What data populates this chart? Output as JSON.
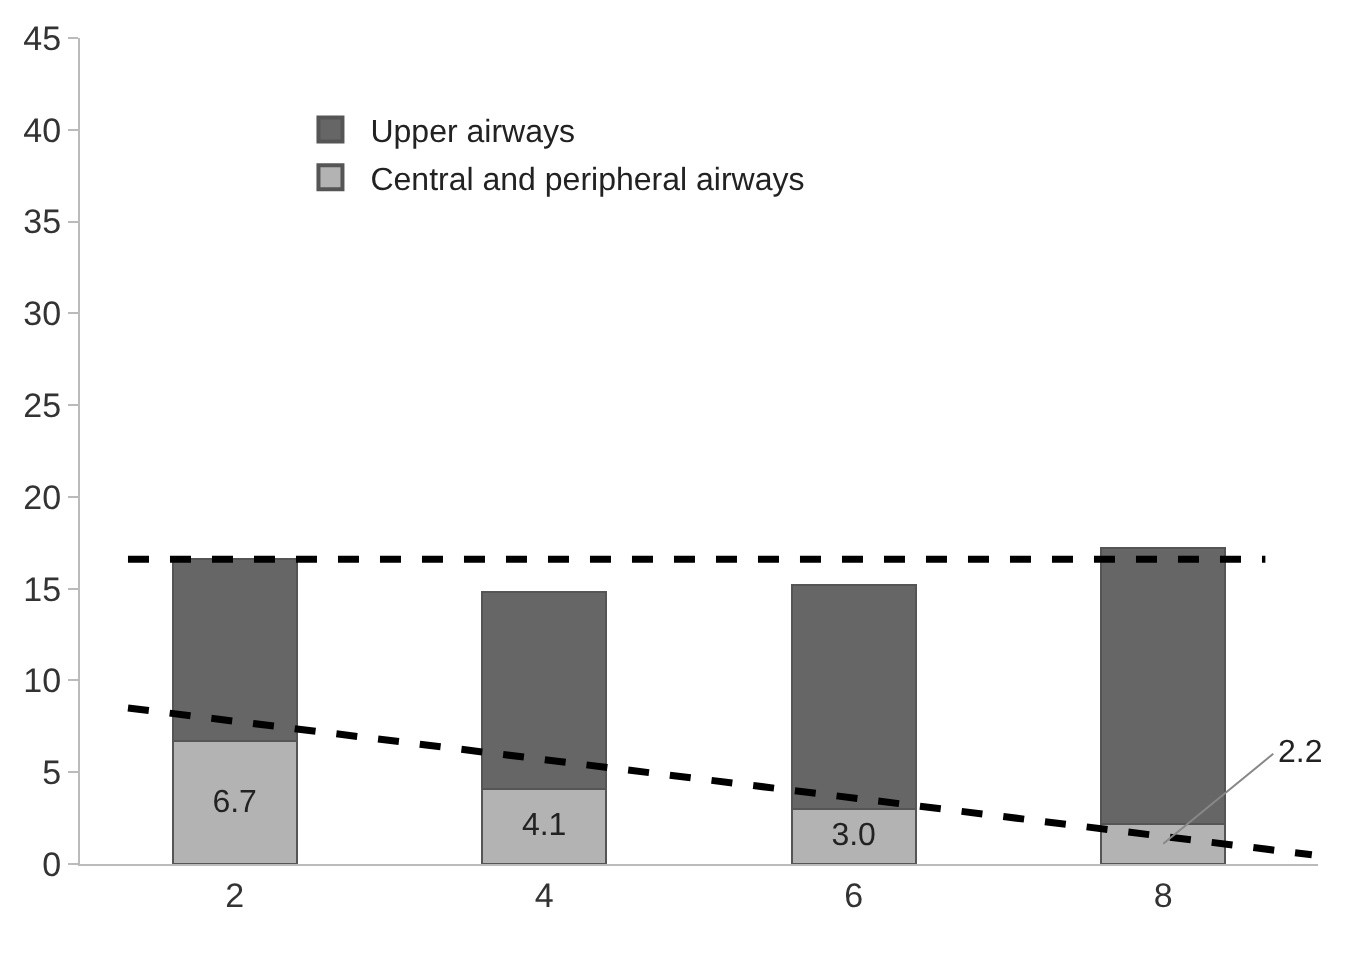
{
  "chart_data": {
    "type": "bar",
    "stacked": true,
    "x": [
      2,
      4,
      6,
      8
    ],
    "xlim": [
      1,
      9
    ],
    "xticks": [
      2,
      4,
      6,
      8
    ],
    "ylim": [
      0,
      45
    ],
    "yticks": [
      0,
      5,
      10,
      15,
      20,
      25,
      30,
      35,
      40,
      45
    ],
    "grid": false,
    "legend": "top left",
    "series": [
      {
        "name": "Central and peripheral airways",
        "color": "#b3b3b3",
        "values": [
          6.7,
          4.1,
          3.0,
          2.2
        ],
        "value_labels": [
          "6.7",
          "4.1",
          "3.0",
          null
        ]
      },
      {
        "name": "Upper airways",
        "color": "#666666",
        "values": [
          9.9,
          10.7,
          12.2,
          15.0
        ]
      },
      {
        "type": "line",
        "color": "#000000",
        "line_style": "dashed",
        "marker": "none",
        "x": [
          1.31,
          8.66
        ],
        "values": [
          16.6,
          16.6
        ]
      },
      {
        "type": "line",
        "color": "#000000",
        "line_style": "dashed",
        "marker": "none",
        "x": [
          1.31,
          8.96
        ],
        "values": [
          8.5,
          0.5
        ]
      }
    ],
    "annotations": [
      {
        "text": "2.2",
        "x": 8,
        "y": 1.1
      }
    ]
  }
}
